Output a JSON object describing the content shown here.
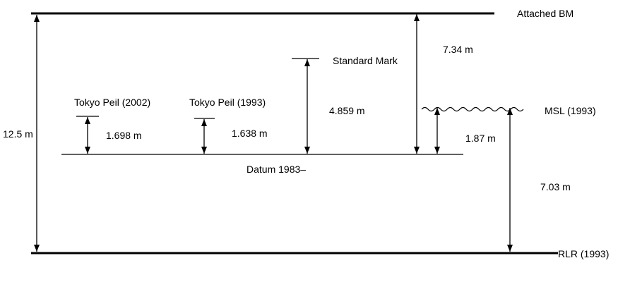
{
  "diagram": {
    "labels": {
      "attached_bm": "Attached BM",
      "standard_mark": "Standard Mark",
      "msl": "MSL (1993)",
      "rlr": "RLR (1993)",
      "datum": "Datum 1983–",
      "tokyo_peil_2002": "Tokyo Peil (2002)",
      "tokyo_peil_1993": "Tokyo Peil (1993)"
    },
    "measurements": {
      "total_height": "12.5 m",
      "tokyo_peil_2002_height": "1.698 m",
      "tokyo_peil_1993_height": "1.638 m",
      "standard_mark_height": "4.859 m",
      "bm_above_datum": "7.34 m",
      "msl_above_datum": "1.87 m",
      "msl_above_rlr": "7.03 m"
    },
    "colors": {
      "stroke": "#000000",
      "background": "#ffffff"
    }
  }
}
